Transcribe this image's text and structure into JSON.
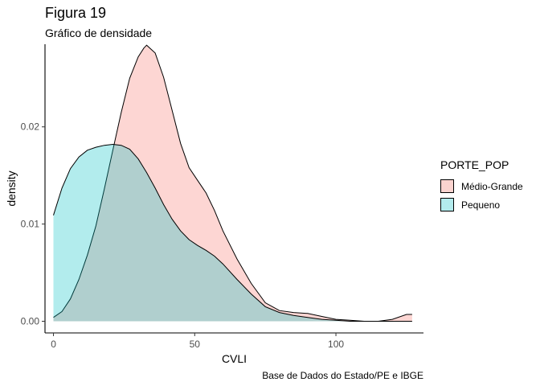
{
  "chart_data": {
    "type": "area",
    "title": "Figura 19",
    "subtitle": "Gráfico de densidade",
    "caption": "Base de Dados do Estado/PE e IBGE",
    "xlabel": "CVLI",
    "ylabel": "density",
    "xlim": [
      -3,
      131
    ],
    "ylim": [
      -0.0012,
      0.0285
    ],
    "x_ticks": [
      0,
      50,
      100
    ],
    "y_ticks": [
      0.0,
      0.01,
      0.02
    ],
    "x_tick_labels": [
      "0",
      "50",
      "100"
    ],
    "y_tick_labels": [
      "0.00",
      "0.01",
      "0.02"
    ],
    "legend": {
      "title": "PORTE_POP",
      "placement": "right"
    },
    "grid": false,
    "series": [
      {
        "name": "Médio-Grande",
        "color": "#F8766D",
        "fill_color": "#fbd3cf",
        "x": [
          0,
          3,
          6,
          9,
          12,
          15,
          18,
          21,
          24,
          27,
          30,
          32,
          33,
          36,
          39,
          42,
          45,
          48,
          51,
          54,
          57,
          60,
          65,
          70,
          75,
          80,
          85,
          90,
          95,
          100,
          105,
          110,
          115,
          120,
          125,
          127
        ],
        "y": [
          0.0004,
          0.001,
          0.0023,
          0.0043,
          0.0068,
          0.0098,
          0.0136,
          0.0176,
          0.0215,
          0.025,
          0.0272,
          0.0281,
          0.0284,
          0.0276,
          0.0251,
          0.0217,
          0.0183,
          0.0158,
          0.0145,
          0.0132,
          0.0114,
          0.0093,
          0.0064,
          0.0039,
          0.0019,
          0.0011,
          0.0009,
          0.0008,
          0.0005,
          0.0002,
          0.0001,
          0.0,
          0.0,
          0.0002,
          0.0007,
          0.0007
        ]
      },
      {
        "name": "Pequeno",
        "color": "#00BFC4",
        "fill_color": "#b3ebed",
        "x": [
          0,
          3,
          6,
          9,
          12,
          15,
          18,
          21,
          24,
          27,
          30,
          33,
          36,
          39,
          42,
          45,
          48,
          51,
          54,
          57,
          60,
          65,
          70,
          75,
          80,
          85,
          90,
          95,
          100,
          105,
          110,
          115,
          120,
          125,
          127
        ],
        "y": [
          0.0109,
          0.0137,
          0.0157,
          0.0169,
          0.0176,
          0.0179,
          0.0181,
          0.0182,
          0.0181,
          0.0177,
          0.0167,
          0.0153,
          0.0137,
          0.012,
          0.0105,
          0.0093,
          0.0084,
          0.0078,
          0.0073,
          0.0067,
          0.0059,
          0.0043,
          0.0028,
          0.0015,
          0.0009,
          0.0006,
          0.0004,
          0.0002,
          0.0001,
          0.0,
          0.0,
          0.0,
          0.0,
          0.0,
          0.0
        ]
      }
    ]
  }
}
